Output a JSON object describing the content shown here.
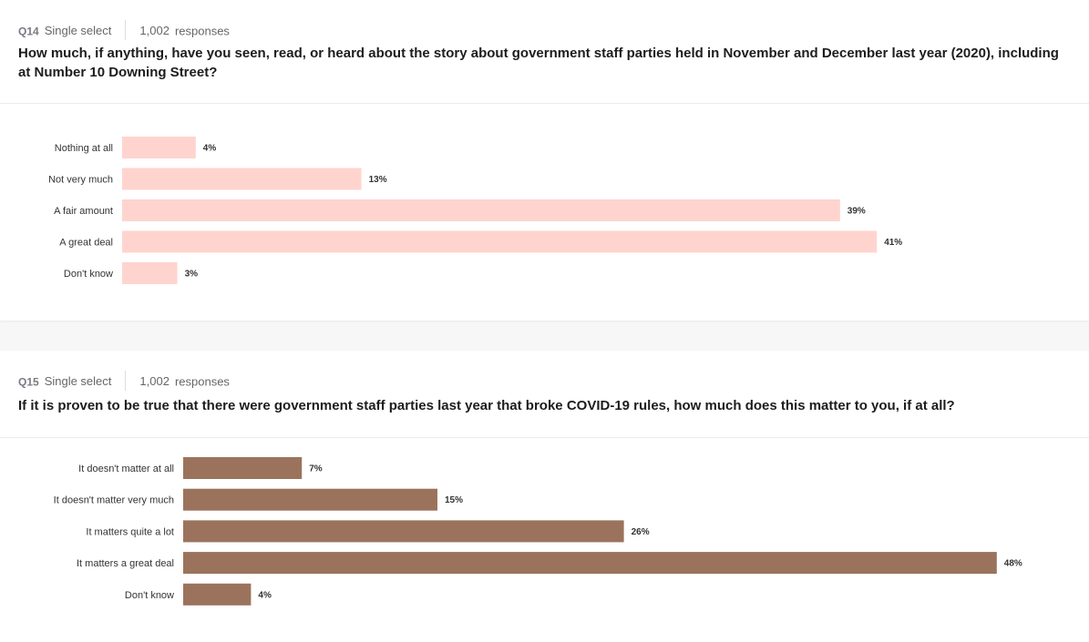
{
  "q14": {
    "id": "Q14",
    "type": "Single select",
    "responses_count": "1,002",
    "responses_label": "responses",
    "question": "How much, if anything, have you seen, read, or heard about the story about government staff parties held in November and December last year (2020), including at Number 10 Downing Street?",
    "color": "#ffd4cf"
  },
  "q15": {
    "id": "Q15",
    "type": "Single select",
    "responses_count": "1,002",
    "responses_label": "responses",
    "question": "If it is proven to be true that there were government staff parties last year that broke COVID-19 rules, how much does this matter to you, if at all?",
    "color": "#9b735c"
  },
  "chart_data": [
    {
      "type": "bar",
      "orientation": "horizontal",
      "categories": [
        "Nothing at all",
        "Not very much",
        "A fair amount",
        "A great deal",
        "Don't know"
      ],
      "values": [
        4,
        13,
        39,
        41,
        3
      ],
      "value_labels": [
        "4%",
        "13%",
        "39%",
        "41%",
        "3%"
      ],
      "unit": "%"
    },
    {
      "type": "bar",
      "orientation": "horizontal",
      "categories": [
        "It doesn't matter at all",
        "It doesn't matter very much",
        "It matters quite a lot",
        "It matters a great deal",
        "Don't know"
      ],
      "values": [
        7,
        15,
        26,
        48,
        4
      ],
      "value_labels": [
        "7%",
        "15%",
        "26%",
        "48%",
        "4%"
      ],
      "unit": "%"
    }
  ]
}
